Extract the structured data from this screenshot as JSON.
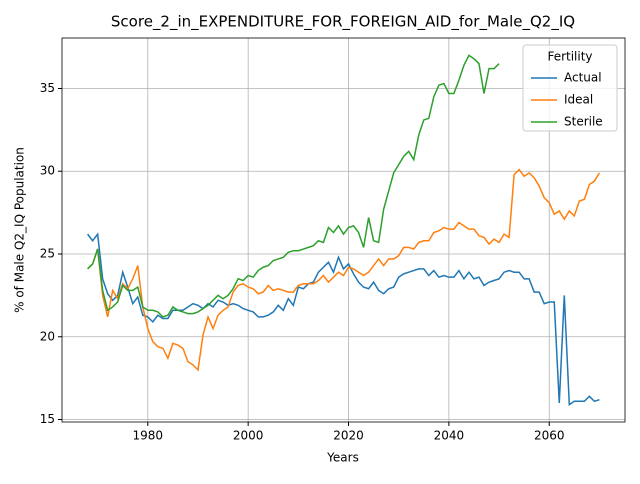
{
  "chart_data": {
    "type": "line",
    "title": "Score_2_in_EXPENDITURE_FOR_FOREIGN_AID_for_Male_Q2_IQ",
    "x_label": "Years",
    "y_label": "% of Male Q2_IQ Population",
    "x": [
      1968,
      1969,
      1970,
      1971,
      1972,
      1973,
      1974,
      1975,
      1976,
      1977,
      1978,
      1979,
      1980,
      1981,
      1982,
      1983,
      1984,
      1985,
      1986,
      1987,
      1988,
      1989,
      1990,
      1991,
      1992,
      1993,
      1994,
      1995,
      1996,
      1997,
      1998,
      1999,
      2000,
      2001,
      2002,
      2003,
      2004,
      2005,
      2006,
      2007,
      2008,
      2009,
      2010,
      2011,
      2012,
      2013,
      2014,
      2015,
      2016,
      2017,
      2018,
      2019,
      2020,
      2021,
      2022,
      2023,
      2024,
      2025,
      2026,
      2027,
      2028,
      2029,
      2030,
      2031,
      2032,
      2033,
      2034,
      2035,
      2036,
      2037,
      2038,
      2039,
      2040,
      2041,
      2042,
      2043,
      2044,
      2045,
      2046,
      2047,
      2048,
      2049,
      2050,
      2051,
      2052,
      2053,
      2054,
      2055,
      2056,
      2057,
      2058,
      2059,
      2060,
      2061,
      2062,
      2063,
      2064,
      2065,
      2066,
      2067,
      2068,
      2069,
      2070
    ],
    "series": [
      {
        "name": "Actual",
        "color": "#1f77b4",
        "values": [
          26.2,
          25.8,
          26.2,
          23.5,
          22.6,
          22.2,
          22.5,
          23.9,
          23.0,
          22.0,
          22.4,
          21.3,
          21.2,
          20.9,
          21.3,
          21.1,
          21.1,
          21.6,
          21.6,
          21.6,
          21.8,
          22.0,
          21.9,
          21.7,
          22.0,
          21.8,
          22.2,
          22.1,
          21.9,
          22.0,
          21.9,
          21.7,
          21.6,
          21.5,
          21.2,
          21.2,
          21.3,
          21.5,
          21.9,
          21.6,
          22.3,
          21.9,
          23.0,
          22.9,
          23.2,
          23.3,
          23.9,
          24.2,
          24.5,
          23.9,
          24.8,
          24.1,
          24.4,
          23.8,
          23.3,
          23.0,
          22.9,
          23.3,
          22.8,
          22.6,
          22.9,
          23.0,
          23.6,
          23.8,
          23.9,
          24.0,
          24.1,
          24.1,
          23.7,
          24.0,
          23.6,
          23.7,
          23.6,
          23.6,
          24.0,
          23.5,
          23.9,
          23.5,
          23.6,
          23.1,
          23.3,
          23.4,
          23.5,
          23.9,
          24.0,
          23.9,
          23.9,
          23.5,
          23.5,
          22.7,
          22.7,
          22.0,
          22.1,
          22.1,
          16.0,
          22.5,
          15.9,
          16.1,
          16.1,
          16.1,
          16.4,
          16.1,
          16.2
        ]
      },
      {
        "name": "Ideal",
        "color": "#ff7f0e",
        "values": [
          24.1,
          24.4,
          25.3,
          22.5,
          21.2,
          22.8,
          22.3,
          23.2,
          22.9,
          23.5,
          24.3,
          21.8,
          20.5,
          19.7,
          19.4,
          19.3,
          18.7,
          19.6,
          19.5,
          19.3,
          18.5,
          18.3,
          18.0,
          20.1,
          21.2,
          20.5,
          21.3,
          21.6,
          21.8,
          22.7,
          23.1,
          23.2,
          23.0,
          22.9,
          22.6,
          22.7,
          23.1,
          22.8,
          22.9,
          22.8,
          22.7,
          22.7,
          23.1,
          23.2,
          23.2,
          23.2,
          23.4,
          23.7,
          23.3,
          23.6,
          23.9,
          23.7,
          24.2,
          24.1,
          23.9,
          23.7,
          23.9,
          24.3,
          24.7,
          24.3,
          24.7,
          24.7,
          24.9,
          25.4,
          25.4,
          25.3,
          25.7,
          25.8,
          25.8,
          26.3,
          26.4,
          26.6,
          26.5,
          26.5,
          26.9,
          26.7,
          26.5,
          26.5,
          26.1,
          26.0,
          25.6,
          25.9,
          25.7,
          26.2,
          26.0,
          29.8,
          30.1,
          29.7,
          29.9,
          29.6,
          29.1,
          28.4,
          28.1,
          27.4,
          27.6,
          27.1,
          27.6,
          27.3,
          28.2,
          28.3,
          29.2,
          29.4,
          29.9
        ]
      },
      {
        "name": "Sterile",
        "color": "#2ca02c",
        "values": [
          24.1,
          24.4,
          25.3,
          22.8,
          21.6,
          21.8,
          22.1,
          23.1,
          22.8,
          22.8,
          23.0,
          21.8,
          21.6,
          21.6,
          21.5,
          21.2,
          21.3,
          21.8,
          21.6,
          21.5,
          21.4,
          21.4,
          21.5,
          21.7,
          21.9,
          22.2,
          22.5,
          22.3,
          22.5,
          22.9,
          23.5,
          23.4,
          23.7,
          23.6,
          24.0,
          24.2,
          24.3,
          24.6,
          24.7,
          24.8,
          25.1,
          25.2,
          25.2,
          25.3,
          25.4,
          25.5,
          25.8,
          25.7,
          26.6,
          26.3,
          26.7,
          26.2,
          26.6,
          26.7,
          26.3,
          25.4,
          27.2,
          25.8,
          25.7,
          27.7,
          28.8,
          29.9,
          30.4,
          30.9,
          31.2,
          30.7,
          32.2,
          33.1,
          33.2,
          34.5,
          35.2,
          35.3,
          34.7,
          34.7,
          35.5,
          36.4,
          37.0,
          36.8,
          36.5,
          34.7,
          36.2,
          36.2,
          36.5,
          null,
          null,
          null,
          null,
          null,
          null,
          null,
          null,
          null,
          null,
          null,
          null,
          null,
          null,
          null,
          null,
          null,
          null,
          null,
          null
        ]
      }
    ],
    "xlim": [
      1962.9,
      2075.1
    ],
    "ylim": [
      14.85,
      38.05
    ],
    "xticks": [
      1980,
      2000,
      2020,
      2040,
      2060
    ],
    "yticks": [
      15,
      20,
      25,
      30,
      35
    ],
    "grid": true,
    "legend_title": "Fertility",
    "legend_position": "upper right"
  }
}
